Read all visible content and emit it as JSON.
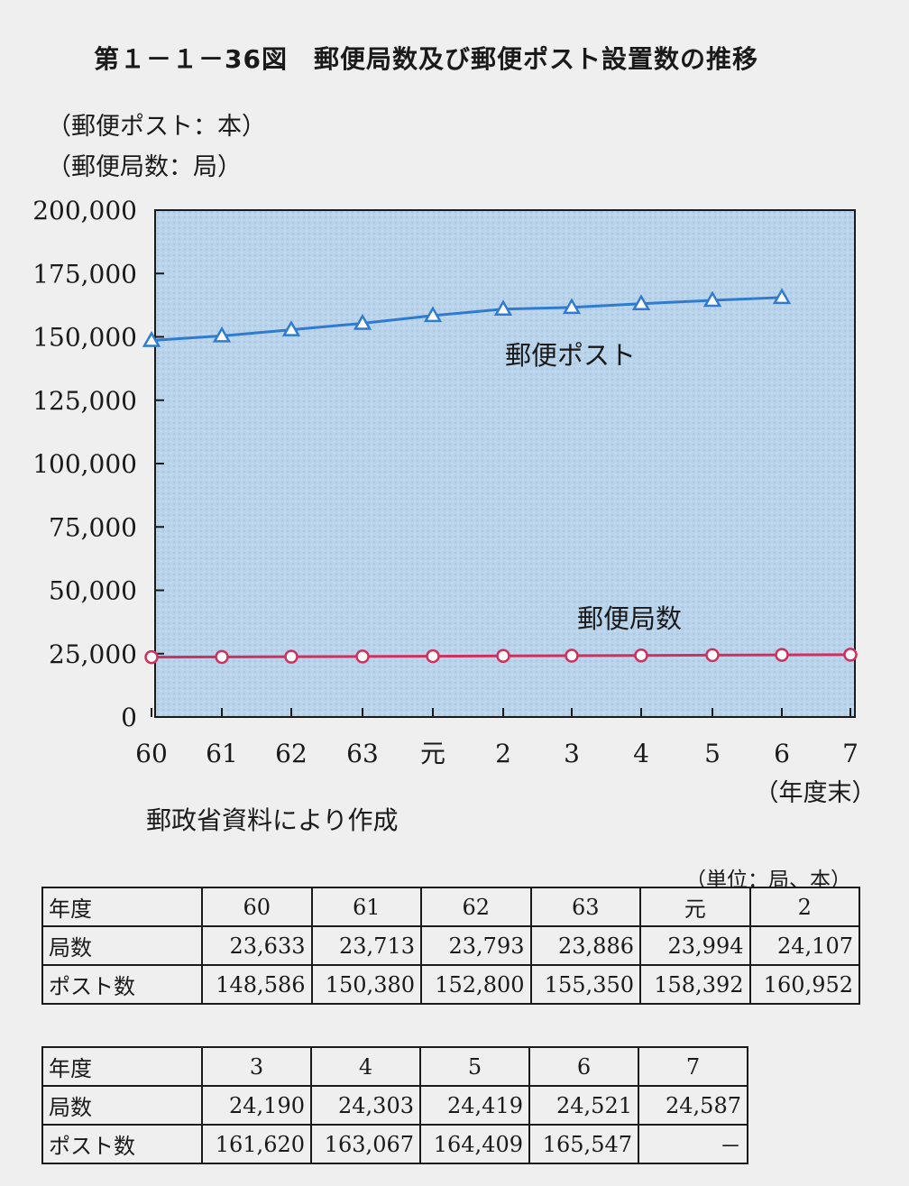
{
  "title": "第１－１－36図　郵便局数及び郵便ポスト設置数の推移",
  "axis_units": {
    "post": "（郵便ポスト：本）",
    "office": "（郵便局数：局）"
  },
  "source": "郵政省資料により作成",
  "unit_note": "（単位：局、本）",
  "colors": {
    "plot_background": "#b9d3ea",
    "post_line": "#2f7bd0",
    "office_line": "#d0305e"
  },
  "chart_data": {
    "type": "line",
    "categories": [
      "60",
      "61",
      "62",
      "63",
      "元",
      "2",
      "3",
      "4",
      "5",
      "6",
      "7"
    ],
    "x_unit_label": "（年度末）",
    "ylim": [
      0,
      200000
    ],
    "y_ticks": [
      "0",
      "25,000",
      "50,000",
      "75,000",
      "100,000",
      "125,000",
      "150,000",
      "175,000",
      "200,000"
    ],
    "grid": false,
    "series": [
      {
        "name": "郵便ポスト",
        "marker": "triangle",
        "values": [
          148586,
          150380,
          152800,
          155350,
          158392,
          160952,
          161620,
          163067,
          164409,
          165547,
          null
        ]
      },
      {
        "name": "郵便局数",
        "marker": "circle",
        "values": [
          23633,
          23713,
          23793,
          23886,
          23994,
          24107,
          24190,
          24303,
          24419,
          24521,
          24587
        ]
      }
    ]
  },
  "tables": [
    {
      "header": "年度",
      "years": [
        "60",
        "61",
        "62",
        "63",
        "元",
        "2"
      ],
      "rows": [
        {
          "label": "局数",
          "values": [
            "23,633",
            "23,713",
            "23,793",
            "23,886",
            "23,994",
            "24,107"
          ]
        },
        {
          "label": "ポスト数",
          "values": [
            "148,586",
            "150,380",
            "152,800",
            "155,350",
            "158,392",
            "160,952"
          ]
        }
      ]
    },
    {
      "header": "年度",
      "years": [
        "3",
        "4",
        "5",
        "6",
        "7"
      ],
      "rows": [
        {
          "label": "局数",
          "values": [
            "24,190",
            "24,303",
            "24,419",
            "24,521",
            "24,587"
          ]
        },
        {
          "label": "ポスト数",
          "values": [
            "161,620",
            "163,067",
            "164,409",
            "165,547",
            "－"
          ]
        }
      ]
    }
  ]
}
